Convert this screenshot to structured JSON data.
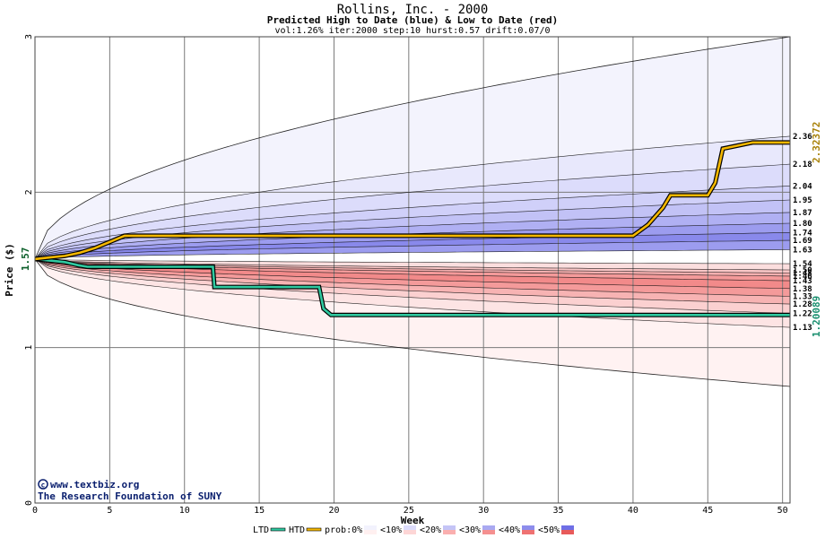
{
  "header": {
    "title": "Rollins, Inc. - 2000",
    "subtitle": "Predicted High to Date (blue) &  Low to Date (red)",
    "params": "vol:1.26% iter:2000 step:10 hurst:0.57 drift:0.07/0"
  },
  "credits": {
    "line1": "www.textbiz.org",
    "line2": "The Research Foundation of SUNY"
  },
  "colors": {
    "grid": "#7a7a7a",
    "htd_line": "#f5b800",
    "ltd_line": "#2fc9a0",
    "current_price": "#0b5f2a",
    "max_label": "#a8820a",
    "min_label": "#1a8f6f",
    "blue_bands": [
      "#f2f2fd",
      "#dcdcfb",
      "#c4c4f6",
      "#a9a9f1",
      "#8d8dec"
    ],
    "red_bands": [
      "#fff0f0",
      "#fdd6d6",
      "#faafaf",
      "#f59090",
      "#ef7272"
    ]
  },
  "chart_data": {
    "type": "area",
    "title": "Rollins, Inc. - 2000",
    "subtitle": "Predicted High to Date (blue) &  Low to Date (red)",
    "xlabel": "Week",
    "ylabel": "Price ($)",
    "xlim": [
      0,
      50.5
    ],
    "ylim": [
      0,
      3
    ],
    "x_ticks": [
      0,
      5,
      10,
      15,
      20,
      25,
      30,
      35,
      40,
      45,
      50
    ],
    "y_ticks": [
      0,
      1,
      2,
      3
    ],
    "grid": true,
    "current_price": 1.57,
    "current_price_label": "1.57",
    "max_htd_label": "2.32372",
    "min_ltd_label": "1.20089",
    "high_percentile_levels": [
      {
        "label": "2.36",
        "value": 2.36
      },
      {
        "label": "2.18",
        "value": 2.18
      },
      {
        "label": "2.04",
        "value": 2.04
      },
      {
        "label": "1.95",
        "value": 1.95
      },
      {
        "label": "1.87",
        "value": 1.87
      },
      {
        "label": "1.80",
        "value": 1.8
      },
      {
        "label": "1.74",
        "value": 1.74
      },
      {
        "label": "1.69",
        "value": 1.69
      },
      {
        "label": "1.63",
        "value": 1.63
      }
    ],
    "low_percentile_levels": [
      {
        "label": "1.54",
        "value": 1.54
      },
      {
        "label": "1.50",
        "value": 1.5
      },
      {
        "label": "1.48",
        "value": 1.48
      },
      {
        "label": "1.46",
        "value": 1.46
      },
      {
        "label": "1.43",
        "value": 1.43
      },
      {
        "label": "1.38",
        "value": 1.38
      },
      {
        "label": "1.33",
        "value": 1.33
      },
      {
        "label": "1.28",
        "value": 1.28
      },
      {
        "label": "1.22",
        "value": 1.22
      },
      {
        "label": "1.13",
        "value": 1.13
      }
    ],
    "unlabeled_envelopes": {
      "upper_end": 3.0,
      "lower_end": 0.75
    },
    "htd_series": {
      "x": [
        0,
        1,
        2,
        3,
        4,
        5,
        6,
        10,
        20,
        30,
        40,
        41,
        42,
        42.5,
        43,
        45,
        45.5,
        46,
        48,
        50.5
      ],
      "y": [
        1.57,
        1.58,
        1.59,
        1.61,
        1.64,
        1.68,
        1.72,
        1.72,
        1.72,
        1.72,
        1.72,
        1.79,
        1.9,
        1.98,
        1.98,
        1.98,
        2.06,
        2.28,
        2.32,
        2.32
      ]
    },
    "ltd_series": {
      "x": [
        0,
        1,
        2,
        2.9,
        3.5,
        5,
        11.9,
        12,
        19,
        19.3,
        19.8,
        25,
        30,
        40,
        50.5
      ],
      "y": [
        1.57,
        1.56,
        1.55,
        1.53,
        1.52,
        1.52,
        1.52,
        1.39,
        1.39,
        1.25,
        1.21,
        1.21,
        1.21,
        1.21,
        1.21
      ]
    },
    "legend": [
      {
        "label": "LTD",
        "kind": "line",
        "color": "#2fc9a0"
      },
      {
        "label": "HTD",
        "kind": "line",
        "color": "#f5b800"
      },
      {
        "label": "prob:0%",
        "kind": "swatch-pair",
        "top": "#f2f2fd",
        "bottom": "#fff0f0"
      },
      {
        "label": "<10%",
        "kind": "swatch-pair",
        "top": "#dcdcfb",
        "bottom": "#fdd6d6"
      },
      {
        "label": "<20%",
        "kind": "swatch-pair",
        "top": "#c4c4f6",
        "bottom": "#faafaf"
      },
      {
        "label": "<30%",
        "kind": "swatch-pair",
        "top": "#a9a9f1",
        "bottom": "#f59090"
      },
      {
        "label": "<40%",
        "kind": "swatch-pair",
        "top": "#8d8dec",
        "bottom": "#ef7272"
      },
      {
        "label": "<50%",
        "kind": "swatch-pair",
        "top": "#6f6fe6",
        "bottom": "#e85a5a"
      }
    ]
  }
}
